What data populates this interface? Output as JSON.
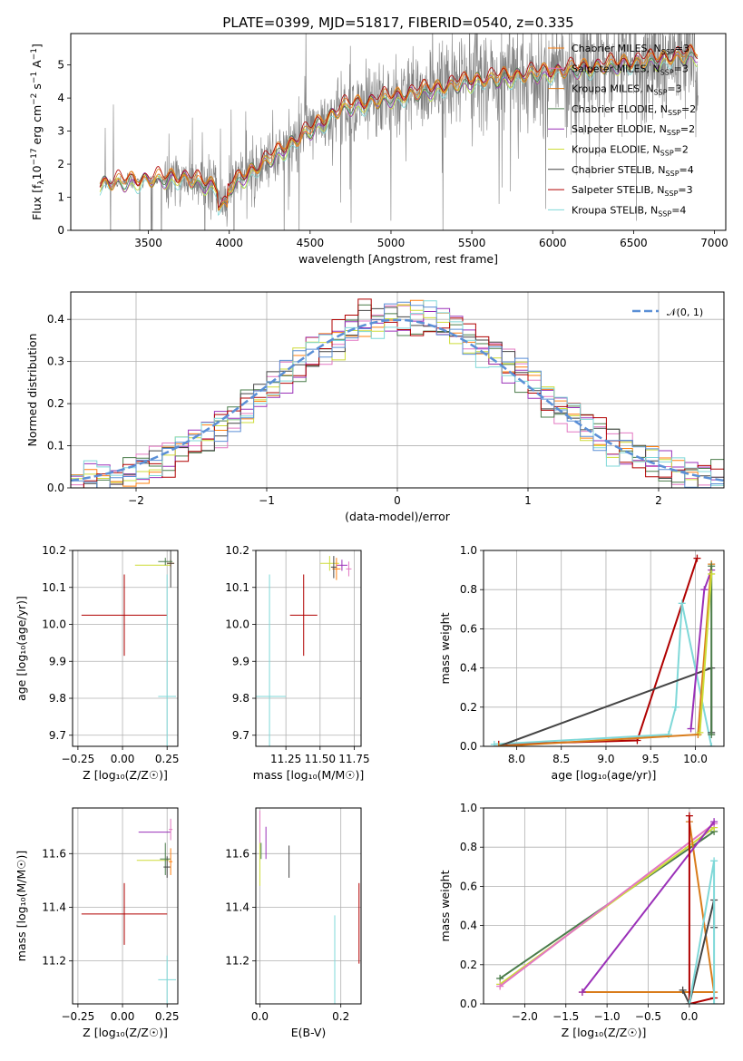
{
  "figure": {
    "title": "PLATE=0399, MJD=51817, FIBERID=0540, z=0.335"
  },
  "colors": {
    "grid": "#b0b0b0",
    "spectrum": "#808080",
    "series": [
      "#ff7f0e",
      "#e377c2",
      "#d97c1b",
      "#4a7c4a",
      "#9a30b8",
      "#cddc39",
      "#444444",
      "#b00000",
      "#7fd8d8"
    ],
    "normal": "#5b8fd6"
  },
  "chart_data": [
    {
      "id": "spectrum",
      "type": "line",
      "xlabel": "wavelength [Angstrom, rest frame]",
      "ylabel": "Flux [f",
      "ylabel_sub": "λ",
      "ylabel_rest": "10",
      "ylabel_exp1": "−17",
      "ylabel_mid": " erg cm",
      "ylabel_exp2": "−2",
      "ylabel_mid2": " s",
      "ylabel_exp3": "−1",
      "ylabel_mid3": " A",
      "ylabel_exp4": "−1",
      "ylabel_end": "]",
      "xlim": [
        3020,
        7070
      ],
      "ylim": [
        0,
        5.95
      ],
      "xticks": [
        "3500",
        "4000",
        "4500",
        "5000",
        "5500",
        "6000",
        "6500",
        "7000"
      ],
      "yticks": [
        "0",
        "1",
        "2",
        "3",
        "4",
        "5"
      ],
      "grid": false,
      "data_range": [
        3200,
        6900
      ],
      "legend": [
        {
          "name": "Chabrier MILES, N",
          "sub": "SSP",
          "end": "=3"
        },
        {
          "name": "Salpeter MILES, N",
          "sub": "SSP",
          "end": "=3"
        },
        {
          "name": "Kroupa MILES, N",
          "sub": "SSP",
          "end": "=3"
        },
        {
          "name": "Chabrier ELODIE, N",
          "sub": "SSP",
          "end": "=2"
        },
        {
          "name": "Salpeter ELODIE, N",
          "sub": "SSP",
          "end": "=2"
        },
        {
          "name": "Kroupa ELODIE, N",
          "sub": "SSP",
          "end": "=2"
        },
        {
          "name": "Chabrier STELIB, N",
          "sub": "SSP",
          "end": "=4"
        },
        {
          "name": "Salpeter STELIB, N",
          "sub": "SSP",
          "end": "=3"
        },
        {
          "name": "Kroupa STELIB, N",
          "sub": "SSP",
          "end": "=4"
        }
      ]
    },
    {
      "id": "residuals",
      "type": "histogram",
      "xlabel": "(data-model)/error",
      "ylabel": "Normed distribution",
      "xlim": [
        -2.5,
        2.5
      ],
      "ylim": [
        0,
        0.465
      ],
      "xticks": [
        "−2",
        "−1",
        "0",
        "1",
        "2"
      ],
      "yticks": [
        "0.0",
        "0.1",
        "0.2",
        "0.3",
        "0.4"
      ],
      "grid": true,
      "bin_width": 0.1,
      "legend": [
        {
          "name": "𝒩(0, 1)"
        }
      ]
    },
    {
      "id": "age-vs-Z",
      "type": "errorbar",
      "xlabel": "Z [log₁₀(Z/Z☉)]",
      "ylabel": "age  [log₁₀(age/yr)]",
      "xlim": [
        -0.28,
        0.31
      ],
      "ylim": [
        9.67,
        10.2
      ],
      "xticks": [
        "−0.25",
        "0.00",
        "0.25"
      ],
      "yticks": [
        "9.7",
        "9.8",
        "9.9",
        "10.0",
        "10.1",
        "10.2"
      ],
      "points": [
        {
          "series": 7,
          "x": 0.01,
          "y": 10.025,
          "xerr": 0.24,
          "yerr": 0.11
        },
        {
          "series": 8,
          "x": 0.25,
          "y": 9.805,
          "xerr": 0.05,
          "yerr": 0.33
        },
        {
          "series": 5,
          "x": 0.17,
          "y": 10.16,
          "xerr": 0.1,
          "yerr": 0.0
        },
        {
          "series": 0,
          "x": 0.27,
          "y": 10.165,
          "xerr": 0.02,
          "yerr": 0.01
        },
        {
          "series": 6,
          "x": 0.27,
          "y": 10.165,
          "xerr": 0.02,
          "yerr": 0.065
        },
        {
          "series": 3,
          "x": 0.24,
          "y": 10.17,
          "xerr": 0.04,
          "yerr": 0.01
        }
      ]
    },
    {
      "id": "age-vs-mass",
      "type": "errorbar",
      "xlabel": "mass [log₁₀(M/M☉)]",
      "ylabel": "",
      "xlim": [
        11.03,
        11.8
      ],
      "ylim": [
        9.67,
        10.2
      ],
      "xticks": [
        "11.25",
        "11.50",
        "11.75"
      ],
      "yticks": [
        "9.7",
        "9.8",
        "9.9",
        "10.0",
        "10.1",
        "10.2"
      ],
      "points": [
        {
          "series": 7,
          "x": 11.38,
          "y": 10.025,
          "xerr": 0.1,
          "yerr": 0.11
        },
        {
          "series": 8,
          "x": 11.13,
          "y": 9.805,
          "xerr": 0.12,
          "yerr": 0.33
        },
        {
          "series": 5,
          "x": 11.57,
          "y": 10.165,
          "xerr": 0.07,
          "yerr": 0.02
        },
        {
          "series": 4,
          "x": 11.66,
          "y": 10.16,
          "xerr": 0.04,
          "yerr": 0.015
        },
        {
          "series": 0,
          "x": 11.62,
          "y": 10.15,
          "xerr": 0.03,
          "yerr": 0.03
        },
        {
          "series": 1,
          "x": 11.71,
          "y": 10.15,
          "xerr": 0.02,
          "yerr": 0.02
        },
        {
          "series": 6,
          "x": 11.6,
          "y": 10.155,
          "xerr": 0.02,
          "yerr": 0.03
        }
      ]
    },
    {
      "id": "weight-vs-age",
      "type": "line",
      "xlabel": "age  [log₁₀(age/yr)]",
      "ylabel": "mass weight",
      "xlim": [
        7.63,
        10.32
      ],
      "ylim": [
        0,
        1.0
      ],
      "xticks": [
        "8.0",
        "8.5",
        "9.0",
        "9.5",
        "10.0"
      ],
      "yticks": [
        "0.0",
        "0.2",
        "0.4",
        "0.6",
        "0.8",
        "1.0"
      ],
      "series": [
        {
          "series": 7,
          "x": [
            7.8,
            9.35,
            10.02
          ],
          "y": [
            0.01,
            0.03,
            0.96
          ]
        },
        {
          "series": 8,
          "x": [
            7.75,
            9.7,
            9.78,
            9.85,
            10.18
          ],
          "y": [
            0.01,
            0.06,
            0.2,
            0.73,
            0.0
          ]
        },
        {
          "series": 6,
          "x": [
            7.8,
            10.18,
            10.18
          ],
          "y": [
            0.0,
            0.4,
            0.07
          ]
        },
        {
          "series": 4,
          "x": [
            9.95,
            10.1,
            10.18
          ],
          "y": [
            0.09,
            0.8,
            0.9
          ]
        },
        {
          "series": 2,
          "x": [
            7.8,
            10.03,
            10.18
          ],
          "y": [
            0.0,
            0.06,
            0.93
          ]
        },
        {
          "series": 3,
          "x": [
            10.18,
            10.18
          ],
          "y": [
            0.06,
            0.92
          ]
        },
        {
          "series": 5,
          "x": [
            10.05,
            10.18
          ],
          "y": [
            0.07,
            0.88
          ]
        }
      ]
    },
    {
      "id": "mass-vs-Z",
      "type": "errorbar",
      "xlabel": "Z [log₁₀(Z/Z☉)]",
      "ylabel": "mass [log₁₀(M/M☉)]",
      "xlim": [
        -0.28,
        0.31
      ],
      "ylim": [
        11.04,
        11.77
      ],
      "xticks": [
        "−0.25",
        "0.00",
        "0.25"
      ],
      "yticks": [
        "11.2",
        "11.4",
        "11.6"
      ],
      "points": [
        {
          "series": 7,
          "x": 0.01,
          "y": 11.375,
          "xerr": 0.24,
          "yerr": 0.115
        },
        {
          "series": 8,
          "x": 0.25,
          "y": 11.13,
          "xerr": 0.05,
          "yerr": 0.09
        },
        {
          "series": 4,
          "x": 0.18,
          "y": 11.68,
          "xerr": 0.09,
          "yerr": 0.0
        },
        {
          "series": 5,
          "x": 0.17,
          "y": 11.575,
          "xerr": 0.09,
          "yerr": 0.0
        },
        {
          "series": 1,
          "x": 0.27,
          "y": 11.69,
          "xerr": 0.01,
          "yerr": 0.04
        },
        {
          "series": 3,
          "x": 0.24,
          "y": 11.58,
          "xerr": 0.03,
          "yerr": 0.06
        },
        {
          "series": 6,
          "x": 0.25,
          "y": 11.55,
          "xerr": 0.02,
          "yerr": 0.04
        },
        {
          "series": 0,
          "x": 0.27,
          "y": 11.57,
          "xerr": 0.01,
          "yerr": 0.05
        }
      ]
    },
    {
      "id": "mass-vs-ebv",
      "type": "errorbar",
      "xlabel": "E(B-V)",
      "ylabel": "",
      "xlim": [
        -0.01,
        0.25
      ],
      "ylim": [
        11.04,
        11.77
      ],
      "xticks": [
        "0.0",
        "0.2"
      ],
      "yticks": [
        "11.2",
        "11.4",
        "11.6"
      ],
      "points": [
        {
          "series": 7,
          "x": 0.245,
          "y": 11.34,
          "xerr": 0.0,
          "yerr": 0.15
        },
        {
          "series": 8,
          "x": 0.185,
          "y": 11.18,
          "xerr": 0.0,
          "yerr": 0.19
        },
        {
          "series": 6,
          "x": 0.072,
          "y": 11.57,
          "xerr": 0.0,
          "yerr": 0.06
        },
        {
          "series": 4,
          "x": 0.015,
          "y": 11.64,
          "xerr": 0.0,
          "yerr": 0.06
        },
        {
          "series": 1,
          "x": 0.0,
          "y": 11.69,
          "xerr": 0.0,
          "yerr": 0.07
        },
        {
          "series": 5,
          "x": 0.0,
          "y": 11.56,
          "xerr": 0.0,
          "yerr": 0.08
        },
        {
          "series": 3,
          "x": 0.003,
          "y": 11.61,
          "xerr": 0.0,
          "yerr": 0.03
        }
      ]
    },
    {
      "id": "weight-vs-Z",
      "type": "line",
      "xlabel": "Z [log₁₀(Z/Z☉)]",
      "ylabel": "mass weight",
      "xlim": [
        -2.5,
        0.42
      ],
      "ylim": [
        0,
        1.0
      ],
      "xticks": [
        "−2.0",
        "−1.5",
        "−1.0",
        "−0.5",
        "0.0"
      ],
      "yticks": [
        "0.0",
        "0.2",
        "0.4",
        "0.6",
        "0.8",
        "1.0"
      ],
      "series": [
        {
          "series": 3,
          "x": [
            -2.3,
            0.3
          ],
          "y": [
            0.13,
            0.88
          ]
        },
        {
          "series": 5,
          "x": [
            -2.3,
            0.3
          ],
          "y": [
            0.1,
            0.9
          ]
        },
        {
          "series": 1,
          "x": [
            -2.3,
            0.3
          ],
          "y": [
            0.09,
            0.92
          ]
        },
        {
          "series": 2,
          "x": [
            -1.3,
            0.3,
            0.0
          ],
          "y": [
            0.06,
            0.06,
            0.93
          ]
        },
        {
          "series": 4,
          "x": [
            -1.3,
            0.3
          ],
          "y": [
            0.06,
            0.93
          ]
        },
        {
          "series": 7,
          "x": [
            0.0,
            0.0,
            0.3
          ],
          "y": [
            0.96,
            0.0,
            0.03
          ]
        },
        {
          "series": 6,
          "x": [
            -0.08,
            0.0,
            0.3,
            0.3
          ],
          "y": [
            0.07,
            0.0,
            0.53,
            0.39
          ]
        },
        {
          "series": 8,
          "x": [
            0.0,
            0.3,
            0.3
          ],
          "y": [
            0.0,
            0.73,
            0.0
          ]
        }
      ]
    }
  ]
}
